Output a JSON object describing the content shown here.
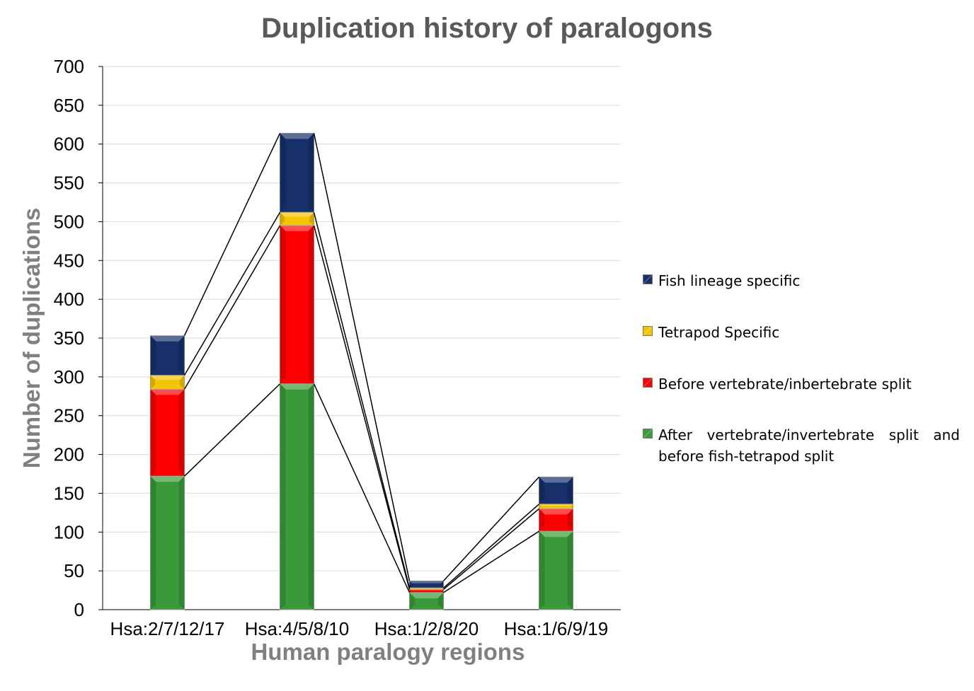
{
  "chart_data": {
    "type": "bar",
    "stacked": true,
    "title": "Duplication history of paralogons",
    "xlabel": "Human paralogy regions",
    "ylabel": "Number of duplications",
    "ylim": [
      0,
      700
    ],
    "yticks": [
      0,
      50,
      100,
      150,
      200,
      250,
      300,
      350,
      400,
      450,
      500,
      550,
      600,
      650,
      700
    ],
    "grid": true,
    "legend_position": "right",
    "series_connectors": true,
    "categories": [
      "Hsa:2/7/12/17",
      "Hsa:4/5/8/10",
      "Hsa:1/2/8/20",
      "Hsa:1/6/9/19"
    ],
    "series": [
      {
        "name": "After vertebrate/invertebrate split and before fish-tetrapod split",
        "color": "#3a9a3a",
        "values": [
          172,
          291,
          22,
          101
        ]
      },
      {
        "name": "Before vertebrate/inbertebrate split",
        "color": "#ff0000",
        "values": [
          112,
          204,
          4,
          29
        ]
      },
      {
        "name": "Tetrapod Specific",
        "color": "#f5c400",
        "values": [
          18,
          17,
          2,
          6
        ]
      },
      {
        "name": "Fish lineage specific",
        "color": "#17306a",
        "values": [
          51,
          102,
          9,
          35
        ]
      }
    ],
    "legend_order": [
      3,
      2,
      1,
      0
    ]
  }
}
